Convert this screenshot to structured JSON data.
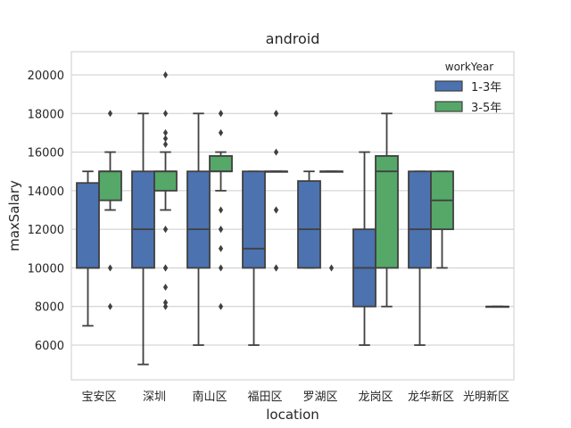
{
  "chart_data": {
    "type": "box",
    "title": "android",
    "xlabel": "location",
    "ylabel": "maxSalary",
    "ylim": [
      4200,
      21200
    ],
    "yticks": [
      6000,
      8000,
      10000,
      12000,
      14000,
      16000,
      18000,
      20000
    ],
    "grid": true,
    "legend": {
      "title": "workYear",
      "position": "top-right"
    },
    "categories": [
      "宝安区",
      "深圳",
      "南山区",
      "福田区",
      "罗湖区",
      "龙岗区",
      "龙华新区",
      "光明新区"
    ],
    "series": [
      {
        "name": "1-3年",
        "color": "#4c72b0",
        "boxes": [
          {
            "whislo": 7000,
            "q1": 10000,
            "med": 10000,
            "q3": 14400,
            "whishi": 15000,
            "fliers": []
          },
          {
            "whislo": 5000,
            "q1": 10000,
            "med": 12000,
            "q3": 15000,
            "whishi": 18000,
            "fliers": []
          },
          {
            "whislo": 6000,
            "q1": 10000,
            "med": 12000,
            "q3": 15000,
            "whishi": 18000,
            "fliers": []
          },
          {
            "whislo": 6000,
            "q1": 10000,
            "med": 11000,
            "q3": 15000,
            "whishi": 15000,
            "fliers": []
          },
          {
            "whislo": 10000,
            "q1": 10000,
            "med": 12000,
            "q3": 14500,
            "whishi": 15000,
            "fliers": []
          },
          {
            "whislo": 6000,
            "q1": 8000,
            "med": 10000,
            "q3": 12000,
            "whishi": 16000,
            "fliers": []
          },
          {
            "whislo": 6000,
            "q1": 10000,
            "med": 12000,
            "q3": 15000,
            "whishi": 15000,
            "fliers": []
          },
          null
        ]
      },
      {
        "name": "3-5年",
        "color": "#55a868",
        "boxes": [
          {
            "whislo": 13000,
            "q1": 13500,
            "med": 15000,
            "q3": 15000,
            "whishi": 16000,
            "fliers": [
              18000,
              10000,
              8000
            ]
          },
          {
            "whislo": 13000,
            "q1": 14000,
            "med": 15000,
            "q3": 15000,
            "whishi": 16000,
            "fliers": [
              20000,
              18000,
              17000,
              16700,
              16400,
              12000,
              12000,
              10000,
              10000,
              9000,
              8200,
              8000
            ]
          },
          {
            "whislo": 14000,
            "q1": 15000,
            "med": 15000,
            "q3": 15800,
            "whishi": 16000,
            "fliers": [
              18000,
              18000,
              17000,
              13000,
              12000,
              12000,
              11000,
              10000,
              8000
            ]
          },
          {
            "whislo": 15000,
            "q1": 15000,
            "med": 15000,
            "q3": 15000,
            "whishi": 15000,
            "fliers": [
              18000,
              18000,
              16000,
              13000,
              13000,
              10000,
              10000
            ]
          },
          {
            "whislo": 15000,
            "q1": 15000,
            "med": 15000,
            "q3": 15000,
            "whishi": 15000,
            "fliers": [
              10000
            ]
          },
          {
            "whislo": 8000,
            "q1": 10000,
            "med": 15000,
            "q3": 15800,
            "whishi": 18000,
            "fliers": []
          },
          {
            "whislo": 10000,
            "q1": 12000,
            "med": 13500,
            "q3": 15000,
            "whishi": 15000,
            "fliers": []
          },
          {
            "whislo": 8000,
            "q1": 8000,
            "med": 8000,
            "q3": 8000,
            "whishi": 8000,
            "fliers": []
          }
        ]
      }
    ]
  }
}
